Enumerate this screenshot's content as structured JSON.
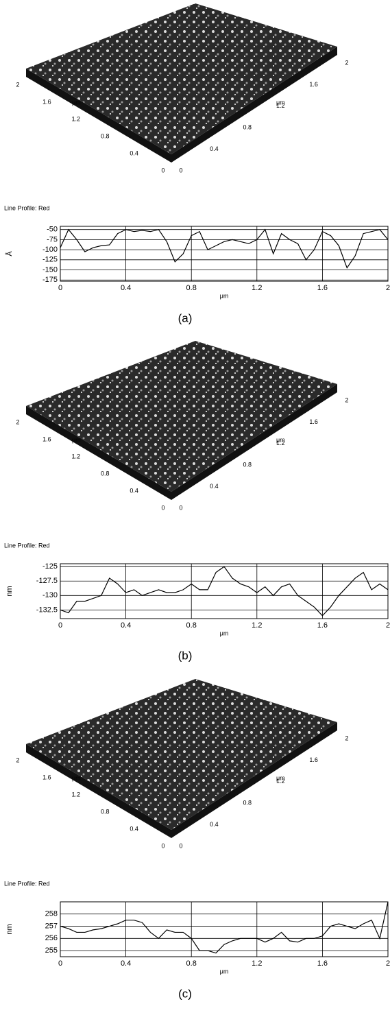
{
  "chart_data": [
    {
      "type": "line",
      "title": "Line Profile: Red",
      "caption": "(a)",
      "xlabel": "μm",
      "ylabel": "Å",
      "surface": {
        "left_ticks": [
          "0",
          "0.4",
          "0.8",
          "1.2",
          "1.6",
          "2"
        ],
        "right_ticks": [
          "0",
          "0.4",
          "0.8",
          "1.2",
          "1.6",
          "2"
        ],
        "unit": "μm"
      },
      "x": [
        0,
        0.05,
        0.1,
        0.15,
        0.2,
        0.25,
        0.3,
        0.35,
        0.4,
        0.45,
        0.5,
        0.55,
        0.6,
        0.65,
        0.7,
        0.75,
        0.8,
        0.85,
        0.9,
        0.95,
        1,
        1.05,
        1.1,
        1.15,
        1.2,
        1.25,
        1.3,
        1.35,
        1.4,
        1.45,
        1.5,
        1.55,
        1.6,
        1.65,
        1.7,
        1.75,
        1.8,
        1.85,
        1.9,
        1.95,
        2
      ],
      "series": [
        {
          "name": "Red",
          "color": "#000000",
          "values": [
            -95,
            -50,
            -75,
            -105,
            -95,
            -90,
            -88,
            -60,
            -50,
            -55,
            -52,
            -55,
            -50,
            -80,
            -130,
            -110,
            -65,
            -55,
            -100,
            -90,
            -80,
            -75,
            -80,
            -85,
            -75,
            -50,
            -110,
            -60,
            -75,
            -85,
            -125,
            -100,
            -55,
            -65,
            -90,
            -145,
            -115,
            -60,
            -55,
            -50,
            -75
          ]
        }
      ],
      "xlim": [
        0,
        2
      ],
      "xticks": [
        0,
        0.4,
        0.8,
        1.2,
        1.6,
        2
      ],
      "ylim": [
        -178,
        -42
      ],
      "yticks": [
        -50,
        -75,
        -100,
        -125,
        -150,
        -175
      ],
      "grid": true
    },
    {
      "type": "line",
      "title": "Line Profile: Red",
      "caption": "(b)",
      "xlabel": "μm",
      "ylabel": "nm",
      "surface": {
        "left_ticks": [
          "0",
          "0.4",
          "0.8",
          "1.2",
          "1.6",
          "2"
        ],
        "right_ticks": [
          "0",
          "0.4",
          "0.8",
          "1.2",
          "1.6",
          "2"
        ],
        "unit": "μm"
      },
      "x": [
        0,
        0.05,
        0.1,
        0.15,
        0.2,
        0.25,
        0.3,
        0.35,
        0.4,
        0.45,
        0.5,
        0.55,
        0.6,
        0.65,
        0.7,
        0.75,
        0.8,
        0.85,
        0.9,
        0.95,
        1,
        1.05,
        1.1,
        1.15,
        1.2,
        1.25,
        1.3,
        1.35,
        1.4,
        1.45,
        1.5,
        1.55,
        1.6,
        1.65,
        1.7,
        1.75,
        1.8,
        1.85,
        1.9,
        1.95,
        2
      ],
      "series": [
        {
          "name": "Red",
          "color": "#000000",
          "values": [
            -132.5,
            -133,
            -131,
            -131,
            -130.5,
            -130,
            -127,
            -128,
            -129.5,
            -129,
            -130,
            -129.5,
            -129,
            -129.5,
            -129.5,
            -129,
            -128,
            -129,
            -129,
            -126,
            -125,
            -127,
            -128,
            -128.5,
            -129.5,
            -128.5,
            -130,
            -128.5,
            -128,
            -130,
            -131,
            -132,
            -133.5,
            -132,
            -130,
            -128.5,
            -127,
            -126,
            -129,
            -128,
            -129
          ]
        }
      ],
      "xlim": [
        0,
        2
      ],
      "xticks": [
        0,
        0.4,
        0.8,
        1.2,
        1.6,
        2
      ],
      "ylim": [
        -134,
        -124.5
      ],
      "yticks": [
        -125,
        -127.5,
        -130,
        -132.5
      ],
      "grid": true
    },
    {
      "type": "line",
      "title": "Line Profile: Red",
      "caption": "(c)",
      "xlabel": "μm",
      "ylabel": "nm",
      "surface": {
        "left_ticks": [
          "0",
          "0.4",
          "0.8",
          "1.2",
          "1.6",
          "2"
        ],
        "right_ticks": [
          "0",
          "0.4",
          "0.8",
          "1.2",
          "1.6",
          "2"
        ],
        "unit": "μm"
      },
      "x": [
        0,
        0.05,
        0.1,
        0.15,
        0.2,
        0.25,
        0.3,
        0.35,
        0.4,
        0.45,
        0.5,
        0.55,
        0.6,
        0.65,
        0.7,
        0.75,
        0.8,
        0.85,
        0.9,
        0.95,
        1,
        1.05,
        1.1,
        1.15,
        1.2,
        1.25,
        1.3,
        1.35,
        1.4,
        1.45,
        1.5,
        1.55,
        1.6,
        1.65,
        1.7,
        1.75,
        1.8,
        1.85,
        1.9,
        1.95,
        2
      ],
      "series": [
        {
          "name": "Red",
          "color": "#000000",
          "values": [
            257,
            256.8,
            256.5,
            256.5,
            256.7,
            256.8,
            257,
            257.2,
            257.5,
            257.5,
            257.3,
            256.5,
            256,
            256.7,
            256.5,
            256.5,
            256,
            255,
            255,
            254.8,
            255.5,
            255.8,
            256,
            256,
            256,
            255.7,
            256,
            256.5,
            255.8,
            255.7,
            256,
            256,
            256.2,
            257,
            257.2,
            257,
            256.8,
            257.2,
            257.5,
            256,
            259
          ]
        }
      ],
      "xlim": [
        0,
        2
      ],
      "xticks": [
        0,
        0.4,
        0.8,
        1.2,
        1.6,
        2
      ],
      "ylim": [
        254.5,
        259
      ],
      "yticks": [
        255,
        256,
        257,
        258
      ],
      "grid": true
    }
  ]
}
